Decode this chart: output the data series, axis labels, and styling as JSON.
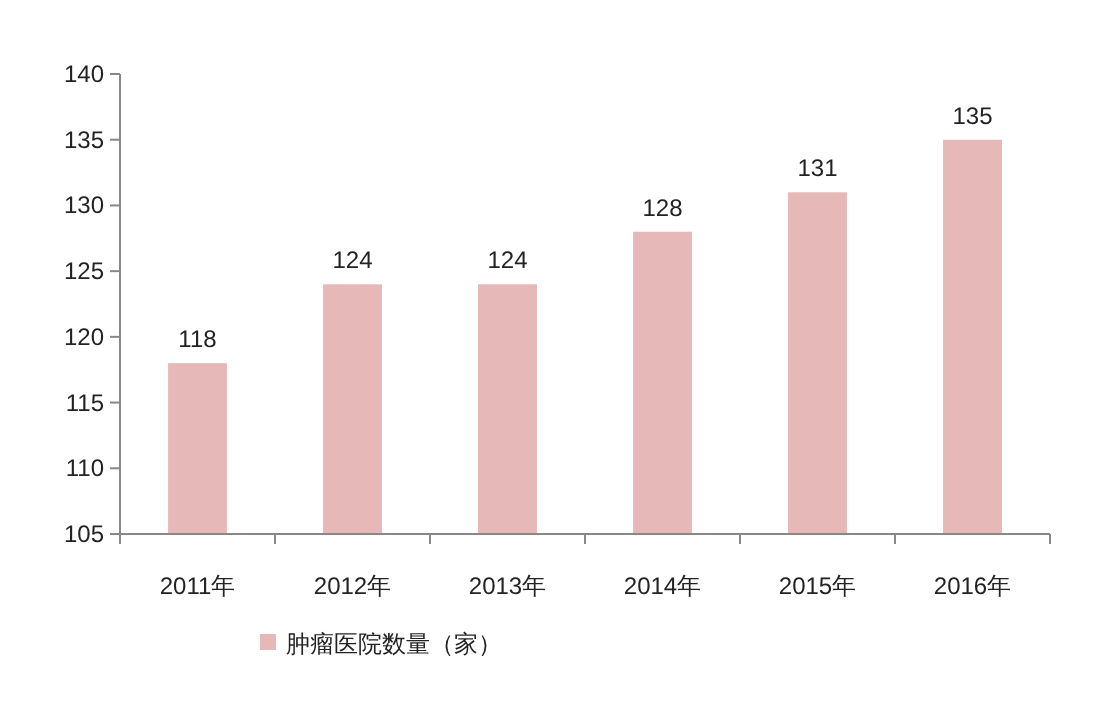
{
  "chart_data": {
    "type": "bar",
    "categories": [
      "2011年",
      "2012年",
      "2013年",
      "2014年",
      "2015年",
      "2016年"
    ],
    "series": [
      {
        "name": "肿瘤医院数量（家）",
        "color": "#e6b9b8",
        "values": [
          118,
          124,
          124,
          128,
          131,
          135
        ]
      }
    ],
    "ylim": [
      105,
      140
    ],
    "yticks": [
      105,
      110,
      115,
      120,
      125,
      130,
      135,
      140
    ],
    "data_labels": true,
    "legend": "bottom left",
    "grid": false
  }
}
